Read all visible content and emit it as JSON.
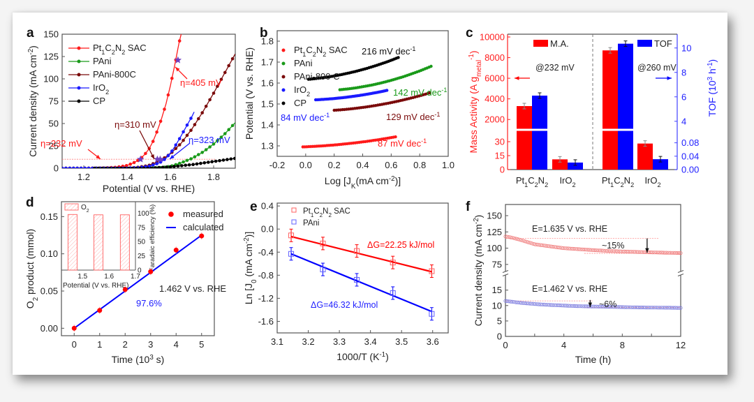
{
  "figure": {
    "chart_data": [
      {
        "panel": "a",
        "type": "line",
        "xlabel": "Potential (V vs. RHE)",
        "ylabel": "Current density (mA cm^-2)",
        "xlim": [
          1.1,
          1.9
        ],
        "ylim": [
          0,
          150
        ],
        "xticks": [
          "1.2",
          "1.4",
          "1.6",
          "1.8"
        ],
        "yticks": [
          "0",
          "25",
          "50",
          "75",
          "100",
          "125",
          "150"
        ],
        "legend_position": "top-left",
        "reference_line_y": 10,
        "series": [
          {
            "name": "Pt1C2N2 SAC",
            "color": "#ff1a1a",
            "x": [
              1.1,
              1.2,
              1.3,
              1.35,
              1.4,
              1.43,
              1.46,
              1.48,
              1.5,
              1.52,
              1.54,
              1.56,
              1.58,
              1.6,
              1.62,
              1.64,
              1.66
            ],
            "y": [
              0,
              0,
              0.3,
              1,
              3,
              6,
              10,
              15,
              21,
              30,
              42,
              56,
              72,
              92,
              115,
              140,
              160
            ]
          },
          {
            "name": "PAni",
            "color": "#1a9a1a",
            "x": [
              1.1,
              1.5,
              1.55,
              1.6,
              1.65,
              1.7,
              1.75,
              1.8,
              1.85,
              1.9
            ],
            "y": [
              0,
              0,
              0.5,
              2,
              6,
              11,
              18,
              27,
              38,
              51
            ]
          },
          {
            "name": "PAni-800C",
            "color": "#7a0a0a",
            "x": [
              1.1,
              1.4,
              1.45,
              1.5,
              1.55,
              1.6,
              1.65,
              1.7,
              1.75,
              1.8,
              1.85,
              1.9
            ],
            "y": [
              0,
              0,
              1,
              3,
              8,
              16,
              28,
              44,
              63,
              84,
              106,
              128
            ]
          },
          {
            "name": "IrO2",
            "color": "#1a1aff",
            "x": [
              1.1,
              1.4,
              1.45,
              1.5,
              1.55,
              1.58,
              1.61,
              1.64,
              1.67,
              1.7,
              1.71
            ],
            "y": [
              0,
              0,
              0.5,
              2,
              6,
              11,
              20,
              32,
              45,
              58,
              63
            ]
          },
          {
            "name": "CP",
            "color": "#000000",
            "x": [
              1.25,
              1.5,
              1.6,
              1.7,
              1.8,
              1.9
            ],
            "y": [
              0,
              0,
              1.5,
              4,
              7.5,
              11
            ]
          }
        ],
        "annotations": [
          {
            "text": "η=232 mV",
            "color": "#ff1a1a"
          },
          {
            "text": "η=310 mV",
            "color": "#7a0a0a"
          },
          {
            "text": "η=323 mV",
            "color": "#1a1aff"
          },
          {
            "text": "η=405 mV",
            "color": "#ff1a1a"
          }
        ],
        "star_markers": [
          {
            "x": 1.462,
            "y": 10
          },
          {
            "x": 1.54,
            "y": 10
          },
          {
            "x": 1.553,
            "y": 10
          },
          {
            "x": 1.635,
            "y": 121
          }
        ]
      },
      {
        "panel": "b",
        "type": "scatter",
        "xlabel": "Log [J_K(mA cm^-2)]",
        "ylabel": "Potential (V vs. RHE)",
        "xlim": [
          -0.2,
          1.0
        ],
        "ylim": [
          1.25,
          1.85
        ],
        "xticks": [
          "-0.2",
          "0.0",
          "0.2",
          "0.4",
          "0.6",
          "0.8",
          "1.0"
        ],
        "yticks": [
          "1.3",
          "1.4",
          "1.5",
          "1.6",
          "1.7",
          "1.8"
        ],
        "legend_position": "top-left",
        "series": [
          {
            "name": "Pt1C2N2 SAC",
            "color": "#ff1a1a",
            "x0": -0.02,
            "x1": 0.63,
            "y0": 1.295,
            "y1": 1.343,
            "tafel": "87 mV dec-1"
          },
          {
            "name": "PAni",
            "color": "#1a9a1a",
            "x0": 0.24,
            "x1": 0.88,
            "y0": 1.568,
            "y1": 1.68,
            "tafel": "142 mV dec-1"
          },
          {
            "name": "PAni-800 C",
            "color": "#7a0a0a",
            "x0": 0.2,
            "x1": 0.87,
            "y0": 1.47,
            "y1": 1.553,
            "tafel": "129 mV dec-1"
          },
          {
            "name": "IrO2",
            "color": "#1a1aff",
            "x0": 0.07,
            "x1": 0.57,
            "y0": 1.52,
            "y1": 1.565,
            "tafel": "84 mV dec-1"
          },
          {
            "name": "CP",
            "color": "#000000",
            "x0": 0.02,
            "x1": 0.65,
            "y0": 1.618,
            "y1": 1.722,
            "tafel": "216 mV dec-1"
          }
        ]
      },
      {
        "panel": "c",
        "type": "bar",
        "ylabel_left": "Mass Activity (A g_metal^-1)",
        "ylabel_right": "TOF (10^3 h^-1)",
        "categories": [
          "Pt1C2N2",
          "IrO2",
          "Pt1C2N2",
          "IrO2"
        ],
        "yticks_left_upper": [
          "2000",
          "4000",
          "6000",
          "8000",
          "10000"
        ],
        "yticks_left_lower": [
          "0",
          "15",
          "30"
        ],
        "yticks_right_upper": [
          "4",
          "6",
          "8",
          "10"
        ],
        "yticks_right_lower": [
          "0.00",
          "0.04",
          "0.08"
        ],
        "legend": [
          "M.A.",
          "TOF"
        ],
        "legend_colors": [
          "#ff0000",
          "#0000ff"
        ],
        "groups": [
          {
            "label": "@232 mV",
            "ma": [
              3300,
              11
            ],
            "tof": [
              6.1,
              0.021
            ]
          },
          {
            "label": "@260 mV",
            "ma": [
              8700,
              28
            ],
            "tof": [
              10.35,
              0.031
            ]
          }
        ],
        "axis_break": true
      },
      {
        "panel": "d",
        "type": "scatter",
        "xlabel": "Time (10^3 s)",
        "ylabel": "O2 product (mmol)",
        "xlim": [
          -0.5,
          5.5
        ],
        "ylim": [
          -0.01,
          0.17
        ],
        "xticks": [
          "0",
          "1",
          "2",
          "3",
          "4",
          "5"
        ],
        "yticks": [
          "0.00",
          "0.05",
          "0.10",
          "0.15"
        ],
        "series": [
          {
            "name": "measured",
            "color": "#ff0000",
            "x": [
              0,
              1,
              2,
              3,
              4,
              5
            ],
            "y": [
              0.0,
              0.024,
              0.052,
              0.076,
              0.105,
              0.124
            ]
          },
          {
            "name": "calculated",
            "color": "#0000ff",
            "x": [
              0,
              5
            ],
            "y": [
              0.0,
              0.125
            ]
          }
        ],
        "annotations": [
          "1.462 V vs. RHE",
          "97.6%"
        ],
        "inset": {
          "type": "bar",
          "legend": "O2",
          "xlabel": "Potential (V vs. RHE)",
          "ylabel": "Faradaic efficiency (%)",
          "xticks": [
            "1.5",
            "1.6",
            "1.7"
          ],
          "yticks": [
            "0",
            "25",
            "50",
            "75",
            "100"
          ],
          "categories": [
            1.462,
            1.56,
            1.66
          ],
          "values": [
            97.6,
            97,
            97
          ]
        }
      },
      {
        "panel": "e",
        "type": "scatter",
        "xlabel": "1000/T (K^-1)",
        "ylabel": "Ln [J_0 (mA cm^-2)]",
        "xlim": [
          3.1,
          3.65
        ],
        "ylim": [
          -1.8,
          0.45
        ],
        "xticks": [
          "3.1",
          "3.2",
          "3.3",
          "3.4",
          "3.5",
          "3.6"
        ],
        "yticks": [
          "-1.6",
          "-1.2",
          "-0.8",
          "-0.4",
          "0.0",
          "0.4"
        ],
        "series": [
          {
            "name": "Pt1C2N2 SAC",
            "color": "#ff0000",
            "x": [
              3.145,
              3.247,
              3.356,
              3.472,
              3.597
            ],
            "y": [
              -0.11,
              -0.25,
              -0.38,
              -0.58,
              -0.73
            ],
            "fit": [
              -0.13,
              -0.74
            ],
            "label": "ΔG=22.25 kJ/mol"
          },
          {
            "name": "PAni",
            "color": "#0000ff",
            "x": [
              3.145,
              3.247,
              3.356,
              3.472,
              3.597
            ],
            "y": [
              -0.43,
              -0.7,
              -0.88,
              -1.11,
              -1.47
            ],
            "fit": [
              -0.43,
              -1.43
            ],
            "label": "ΔG=46.32 kJ/mol"
          }
        ]
      },
      {
        "panel": "f",
        "type": "line",
        "xlabel": "Time (h)",
        "ylabel": "Current density (mA cm^-2)",
        "xlim": [
          0,
          12
        ],
        "xticks": [
          "0",
          "4",
          "8",
          "12"
        ],
        "yticks_upper": [
          "75",
          "100",
          "125",
          "150"
        ],
        "yticks_lower": [
          "0",
          "5",
          "10",
          "15"
        ],
        "axis_break": true,
        "series": [
          {
            "name": "E=1.635 V vs. RHE",
            "color": "#f08080",
            "t": [
              0,
              0.3,
              1,
              2,
              3,
              4,
              5,
              6,
              7,
              8,
              9,
              10,
              11,
              12
            ],
            "y": [
              118,
              117,
              113,
              106,
              103,
              100,
              98.5,
              97,
              95.8,
              95,
              94.2,
              93.6,
              93,
              92.5
            ],
            "decay": "~15%"
          },
          {
            "name": "E=1.462 V vs. RHE",
            "color": "#8080e0",
            "t": [
              0,
              1,
              2,
              3,
              4,
              5,
              6,
              7,
              8,
              9,
              10,
              11,
              12
            ],
            "y": [
              11.5,
              10.9,
              10.5,
              10.2,
              10.0,
              9.8,
              9.7,
              9.6,
              9.5,
              9.4,
              9.35,
              9.3,
              9.25
            ],
            "decay": "~6%"
          }
        ]
      }
    ]
  },
  "labels": {
    "panels": [
      "a",
      "b",
      "c",
      "d",
      "e",
      "f"
    ]
  }
}
